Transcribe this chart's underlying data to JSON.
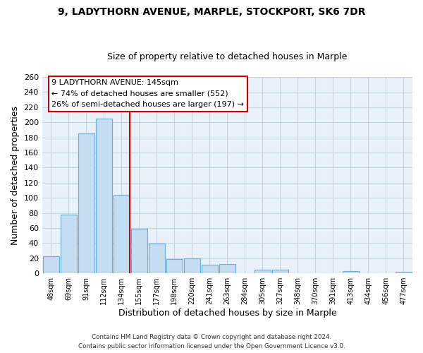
{
  "title1": "9, LADYTHORN AVENUE, MARPLE, STOCKPORT, SK6 7DR",
  "title2": "Size of property relative to detached houses in Marple",
  "xlabel": "Distribution of detached houses by size in Marple",
  "ylabel": "Number of detached properties",
  "bar_labels": [
    "48sqm",
    "69sqm",
    "91sqm",
    "112sqm",
    "134sqm",
    "155sqm",
    "177sqm",
    "198sqm",
    "220sqm",
    "241sqm",
    "263sqm",
    "284sqm",
    "305sqm",
    "327sqm",
    "348sqm",
    "370sqm",
    "391sqm",
    "413sqm",
    "434sqm",
    "456sqm",
    "477sqm"
  ],
  "bar_values": [
    23,
    78,
    185,
    205,
    104,
    59,
    39,
    19,
    20,
    11,
    12,
    0,
    5,
    5,
    0,
    0,
    0,
    3,
    0,
    0,
    2
  ],
  "bar_color": "#c5ddf0",
  "bar_edge_color": "#6baed6",
  "vline_color": "#cc0000",
  "annotation_title": "9 LADYTHORN AVENUE: 145sqm",
  "annotation_line1": "← 74% of detached houses are smaller (552)",
  "annotation_line2": "26% of semi-detached houses are larger (197) →",
  "annotation_box_color": "#ffffff",
  "annotation_box_edge": "#cc0000",
  "ylim": [
    0,
    260
  ],
  "yticks": [
    0,
    20,
    40,
    60,
    80,
    100,
    120,
    140,
    160,
    180,
    200,
    220,
    240,
    260
  ],
  "footnote1": "Contains HM Land Registry data © Crown copyright and database right 2024.",
  "footnote2": "Contains public sector information licensed under the Open Government Licence v3.0.",
  "bg_color": "#ffffff",
  "plot_bg_color": "#e8f0f8",
  "grid_color": "#c8d4e0"
}
